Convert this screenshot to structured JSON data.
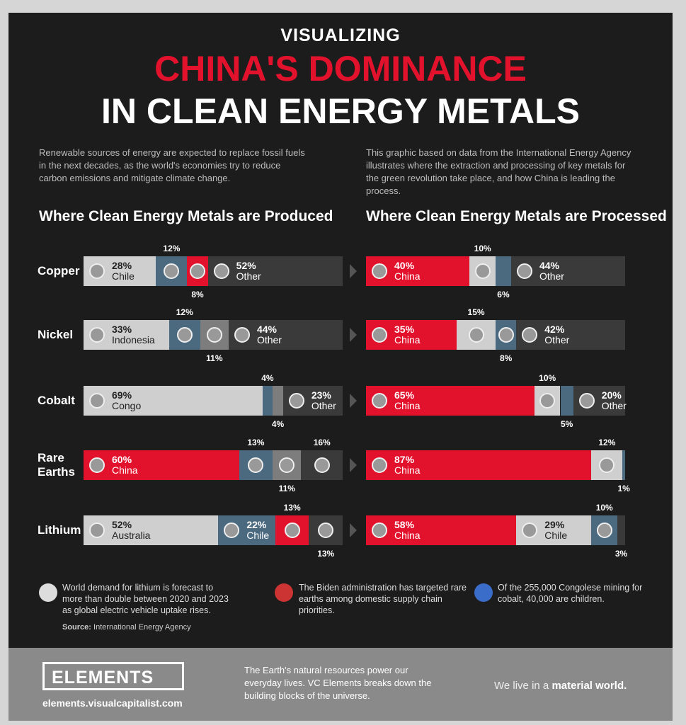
{
  "header": {
    "kicker": "VISUALIZING",
    "title_red": "CHINA'S DOMINANCE",
    "title": "IN CLEAN ENERGY METALS",
    "intro_left": "Renewable sources of energy are expected to replace fossil fuels in the next decades, as the world's economies try to reduce carbon emissions and mitigate climate change.",
    "intro_right": "This graphic based on data from the International Energy Agency illustrates where the extraction and processing of key metals for the green revolution take place, and how China is leading the process."
  },
  "chart_data": [
    {
      "type": "stacked_bar",
      "title": "Where Clean Energy Metals are Produced",
      "rows": [
        {
          "category": "Copper",
          "segments": [
            {
              "name": "Chile",
              "value": 28,
              "value_label": "28%",
              "color": "#cfcfcf"
            },
            {
              "name": null,
              "value": 12,
              "value_label": "12%",
              "color": "#4b6a80"
            },
            {
              "name": null,
              "value": 8,
              "value_label": "8%",
              "color": "#e3122c"
            },
            {
              "name": "Other",
              "value": 52,
              "value_label": "52%",
              "color": "#3a3a3a"
            }
          ]
        },
        {
          "category": "Nickel",
          "segments": [
            {
              "name": "Indonesia",
              "value": 33,
              "value_label": "33%",
              "color": "#cfcfcf"
            },
            {
              "name": null,
              "value": 12,
              "value_label": "12%",
              "color": "#4b6a80"
            },
            {
              "name": null,
              "value": 11,
              "value_label": "11%",
              "color": "#7d7d7d"
            },
            {
              "name": "Other",
              "value": 44,
              "value_label": "44%",
              "color": "#3a3a3a"
            }
          ]
        },
        {
          "category": "Cobalt",
          "segments": [
            {
              "name": "Congo",
              "value": 69,
              "value_label": "69%",
              "color": "#cfcfcf"
            },
            {
              "name": null,
              "value": 4,
              "value_label": "4%",
              "color": "#4b6a80"
            },
            {
              "name": null,
              "value": 4,
              "value_label": "4%",
              "color": "#7d7d7d"
            },
            {
              "name": "Other",
              "value": 23,
              "value_label": "23%",
              "color": "#3a3a3a"
            }
          ]
        },
        {
          "category": "Rare Earths",
          "segments": [
            {
              "name": "China",
              "value": 60,
              "value_label": "60%",
              "color": "#e3122c"
            },
            {
              "name": null,
              "value": 13,
              "value_label": "13%",
              "color": "#4b6a80"
            },
            {
              "name": null,
              "value": 11,
              "value_label": "11%",
              "color": "#7d7d7d"
            },
            {
              "name": null,
              "value": 16,
              "value_label": "16%",
              "color": "#3a3a3a"
            }
          ]
        },
        {
          "category": "Lithium",
          "segments": [
            {
              "name": "Australia",
              "value": 52,
              "value_label": "52%",
              "color": "#cfcfcf"
            },
            {
              "name": "Chile",
              "value": 22,
              "value_label": "22%",
              "color": "#4b6a80"
            },
            {
              "name": null,
              "value": 13,
              "value_label": "13%",
              "color": "#e3122c"
            },
            {
              "name": null,
              "value": 13,
              "value_label": "13%",
              "color": "#3a3a3a"
            }
          ]
        }
      ]
    },
    {
      "type": "stacked_bar",
      "title": "Where Clean Energy Metals are Processed",
      "rows": [
        {
          "segments": [
            {
              "name": "China",
              "value": 40,
              "value_label": "40%",
              "color": "#e3122c"
            },
            {
              "name": null,
              "value": 10,
              "value_label": "10%",
              "color": "#cfcfcf"
            },
            {
              "name": null,
              "value": 6,
              "value_label": "6%",
              "color": "#4b6a80"
            },
            {
              "name": "Other",
              "value": 44,
              "value_label": "44%",
              "color": "#3a3a3a"
            }
          ]
        },
        {
          "segments": [
            {
              "name": "China",
              "value": 35,
              "value_label": "35%",
              "color": "#e3122c"
            },
            {
              "name": null,
              "value": 15,
              "value_label": "15%",
              "color": "#cfcfcf"
            },
            {
              "name": null,
              "value": 8,
              "value_label": "8%",
              "color": "#4b6a80"
            },
            {
              "name": "Other",
              "value": 42,
              "value_label": "42%",
              "color": "#3a3a3a"
            }
          ]
        },
        {
          "segments": [
            {
              "name": "China",
              "value": 65,
              "value_label": "65%",
              "color": "#e3122c"
            },
            {
              "name": null,
              "value": 10,
              "value_label": "10%",
              "color": "#cfcfcf"
            },
            {
              "name": null,
              "value": 5,
              "value_label": "5%",
              "color": "#4b6a80"
            },
            {
              "name": "Other",
              "value": 20,
              "value_label": "20%",
              "color": "#3a3a3a"
            }
          ]
        },
        {
          "segments": [
            {
              "name": "China",
              "value": 87,
              "value_label": "87%",
              "color": "#e3122c"
            },
            {
              "name": null,
              "value": 12,
              "value_label": "12%",
              "color": "#cfcfcf"
            },
            {
              "name": null,
              "value": 1,
              "value_label": "1%",
              "color": "#4b6a80"
            }
          ]
        },
        {
          "segments": [
            {
              "name": "China",
              "value": 58,
              "value_label": "58%",
              "color": "#e3122c"
            },
            {
              "name": "Chile",
              "value": 29,
              "value_label": "29%",
              "color": "#cfcfcf"
            },
            {
              "name": null,
              "value": 10,
              "value_label": "10%",
              "color": "#4b6a80"
            },
            {
              "name": null,
              "value": 3,
              "value_label": "3%",
              "color": "#3a3a3a"
            }
          ]
        }
      ]
    }
  ],
  "notes": [
    "World demand for lithium is forecast to more than double between 2020 and 2023 as global electric vehicle uptake rises.",
    "The Biden administration has targeted rare earths among domestic supply chain priorities.",
    "Of the 255,000 Congolese mining for cobalt, 40,000 are children."
  ],
  "source": {
    "label": "Source:",
    "text": "International Energy Agency"
  },
  "footer": {
    "logo": "ELEMENTS",
    "url": "elements.visualcapitalist.com",
    "blurb": "The Earth's natural resources power our everyday lives. VC Elements breaks down the building blocks of the universe.",
    "tagline_start": "We live in a ",
    "tagline_end": "material world."
  }
}
